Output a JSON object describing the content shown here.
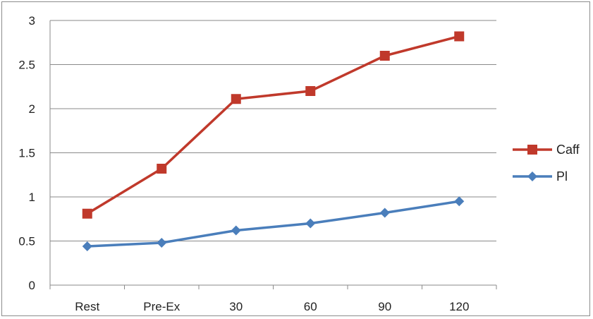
{
  "chart_data": {
    "type": "line",
    "categories": [
      "Rest",
      "Pre-Ex",
      "30",
      "60",
      "90",
      "120"
    ],
    "series": [
      {
        "name": "Caff",
        "color": "#c0392b",
        "marker": "square",
        "values": [
          0.81,
          1.32,
          2.11,
          2.2,
          2.6,
          2.82
        ]
      },
      {
        "name": "Pl",
        "color": "#4a7ebb",
        "marker": "diamond",
        "values": [
          0.44,
          0.48,
          0.62,
          0.7,
          0.82,
          0.95
        ]
      }
    ],
    "ylim": [
      0,
      3
    ],
    "yticks": [
      "0",
      "0.5",
      "1",
      "1.5",
      "2",
      "2.5",
      "3"
    ],
    "grid": true,
    "legend_position": "right",
    "title": "",
    "xlabel": "",
    "ylabel": ""
  }
}
